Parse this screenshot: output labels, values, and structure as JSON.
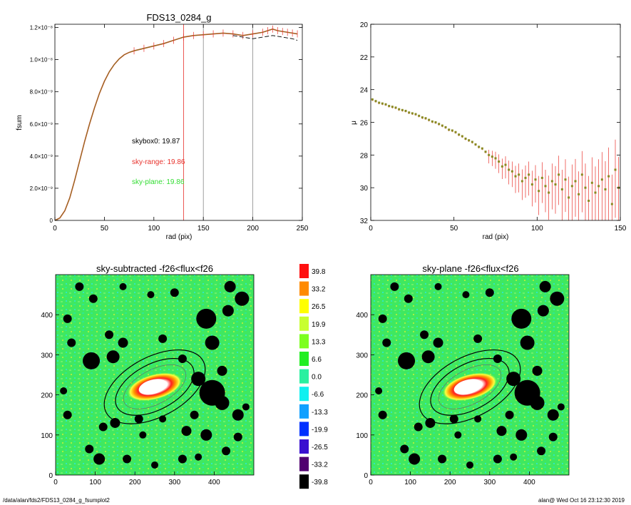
{
  "chart_data": [
    {
      "type": "line",
      "title": "FDS13_0284_g",
      "xlabel": "rad (pix)",
      "ylabel": "fsum",
      "xlim": [
        0,
        250
      ],
      "ylim": [
        0,
        1.22e-08
      ],
      "xticks": [
        "0",
        "50",
        "100",
        "150",
        "200",
        "250"
      ],
      "yticks": [
        "0",
        "2.0×10⁻⁹",
        "4.0×10⁻⁹",
        "6.0×10⁻⁹",
        "8.0×10⁻⁹",
        "1.0×10⁻⁸",
        "1.2×10⁻⁸"
      ],
      "ytick_values": [
        0,
        2e-09,
        4e-09,
        6e-09,
        8e-09,
        1e-08,
        1.2e-08
      ],
      "xtick_values": [
        0,
        50,
        100,
        150,
        200,
        250
      ],
      "vlines": [
        {
          "x": 130,
          "color": "#e8322c"
        },
        {
          "x": 150,
          "color": "#888888"
        },
        {
          "x": 200,
          "color": "#888888"
        }
      ],
      "annotations": [
        {
          "text": "skybox0: 19.87",
          "color": "#000000"
        },
        {
          "text": "sky-range: 19.86",
          "color": "#e8322c"
        },
        {
          "text": "sky-plane: 19.86",
          "color": "#33dd33"
        }
      ],
      "series": [
        {
          "color": "#e8322c",
          "x": [
            0,
            5,
            10,
            15,
            20,
            25,
            30,
            35,
            40,
            45,
            50,
            55,
            60,
            65,
            70,
            75,
            80,
            90,
            100,
            110,
            120,
            130,
            140,
            150,
            160,
            170,
            180,
            190,
            200,
            210,
            215,
            220,
            225,
            230,
            235,
            240,
            245
          ],
          "y": [
            0,
            1.5e-10,
            6e-10,
            1.4e-09,
            2.5e-09,
            3.7e-09,
            4.9e-09,
            6e-09,
            7e-09,
            7.9e-09,
            8.65e-09,
            9.25e-09,
            9.7e-09,
            1.005e-08,
            1.03e-08,
            1.045e-08,
            1.055e-08,
            1.07e-08,
            1.085e-08,
            1.1e-08,
            1.12e-08,
            1.14e-08,
            1.15e-08,
            1.155e-08,
            1.16e-08,
            1.165e-08,
            1.16e-08,
            1.15e-08,
            1.16e-08,
            1.17e-08,
            1.18e-08,
            1.19e-08,
            1.18e-08,
            1.175e-08,
            1.17e-08,
            1.165e-08,
            1.16e-08
          ]
        },
        {
          "color": "#000000",
          "dashed": true,
          "x": [
            180,
            190,
            200,
            210,
            220,
            230,
            240,
            245
          ],
          "y": [
            1.15e-08,
            1.14e-08,
            1.13e-08,
            1.14e-08,
            1.15e-08,
            1.14e-08,
            1.13e-08,
            1.12e-08
          ]
        }
      ]
    },
    {
      "type": "scatter",
      "xlabel": "rad (pix)",
      "ylabel": "μ",
      "xlim": [
        0,
        150
      ],
      "ylim": [
        32,
        20
      ],
      "xticks": [
        "0",
        "50",
        "100",
        "150"
      ],
      "xtick_values": [
        0,
        50,
        100,
        150
      ],
      "yticks": [
        "20",
        "22",
        "24",
        "26",
        "28",
        "30",
        "32"
      ],
      "ytick_values": [
        20,
        22,
        24,
        26,
        28,
        30,
        32
      ],
      "series": [
        {
          "color": "#8a8a22",
          "x": [
            1,
            3,
            5,
            7,
            9,
            11,
            13,
            15,
            17,
            19,
            21,
            23,
            25,
            27,
            29,
            31,
            33,
            35,
            37,
            39,
            41,
            43,
            45,
            47,
            49,
            51,
            53,
            55,
            57,
            59,
            61,
            63,
            65,
            67,
            69,
            71,
            73,
            75,
            77,
            79,
            81,
            83,
            85,
            87,
            89,
            91,
            93,
            95,
            97,
            99,
            101,
            103,
            105,
            107,
            109,
            111,
            113,
            115,
            117,
            119,
            121,
            123,
            125,
            127,
            129,
            131,
            133,
            135,
            137,
            139,
            141,
            143,
            145,
            147,
            149
          ],
          "y": [
            24.6,
            24.7,
            24.8,
            24.85,
            24.9,
            25.0,
            25.05,
            25.1,
            25.2,
            25.25,
            25.3,
            25.4,
            25.45,
            25.5,
            25.6,
            25.7,
            25.75,
            25.85,
            25.95,
            26.0,
            26.1,
            26.2,
            26.3,
            26.45,
            26.5,
            26.6,
            26.75,
            26.85,
            27.0,
            27.1,
            27.2,
            27.35,
            27.5,
            27.6,
            27.8,
            28.0,
            28.1,
            28.2,
            28.4,
            28.7,
            28.6,
            28.9,
            29.0,
            29.3,
            29.2,
            29.6,
            29.4,
            29.2,
            29.8,
            29.5,
            30.2,
            29.4,
            29.9,
            30.3,
            29.6,
            29.8,
            29.2,
            30.1,
            29.5,
            30.6,
            29.9,
            29.6,
            30.4,
            29.2,
            30.0,
            30.8,
            29.7,
            30.3,
            29.9,
            29.5,
            30.1,
            29.3,
            31.0,
            28.9,
            30.0
          ]
        }
      ]
    },
    {
      "type": "heatmap",
      "title": "sky-subtracted -f26<flux<f26",
      "xlim": [
        0,
        500
      ],
      "ylim": [
        0,
        500
      ],
      "xticks": [
        "0",
        "100",
        "200",
        "300",
        "400"
      ],
      "yticks": [
        "0",
        "100",
        "200",
        "300",
        "400"
      ],
      "tick_values": [
        0,
        100,
        200,
        300,
        400
      ]
    },
    {
      "type": "heatmap",
      "title": "sky-plane -f26<flux<f26",
      "xlim": [
        0,
        500
      ],
      "ylim": [
        0,
        500
      ],
      "xticks": [
        "0",
        "100",
        "200",
        "300",
        "400"
      ],
      "yticks": [
        "0",
        "100",
        "200",
        "300",
        "400"
      ],
      "tick_values": [
        0,
        100,
        200,
        300,
        400
      ]
    }
  ],
  "colorbar": {
    "labels": [
      "39.8",
      "33.2",
      "26.5",
      "19.9",
      "13.3",
      "6.6",
      "0.0",
      "-6.6",
      "-13.3",
      "-19.9",
      "-26.5",
      "-33.2",
      "-39.8"
    ],
    "colors": [
      "#ff1010",
      "#ff8a00",
      "#ffff00",
      "#c8ff30",
      "#7dff20",
      "#22ee22",
      "#2af0a0",
      "#10f0f0",
      "#10a0ff",
      "#0030ff",
      "#3a10d0",
      "#500070",
      "#000000"
    ]
  },
  "footer": {
    "left": "/data/alan/fds2/FDS13_0284_g_fsumplot2",
    "right": "alan@  Wed Oct 16 23:12:30 2019"
  }
}
